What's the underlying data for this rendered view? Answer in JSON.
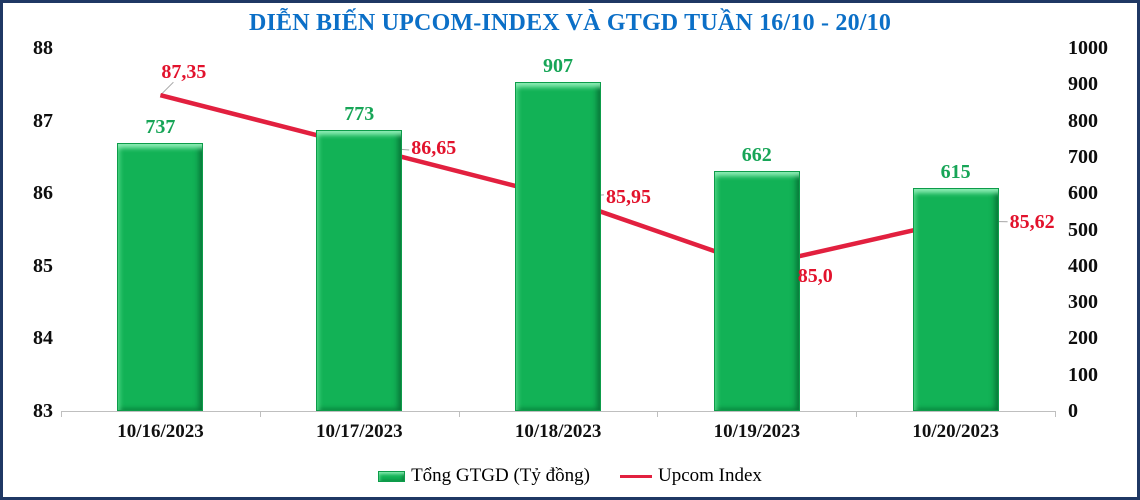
{
  "title": "DIỄN BIẾN UPCOM-INDEX VÀ GTGD TUẦN 16/10 - 20/10",
  "legend": {
    "bars_label": "Tổng GTGD (Tỷ đồng)",
    "line_label": "Upcom Index"
  },
  "colors": {
    "title": "#0B6FC7",
    "frame_border": "#1F3864",
    "bar_fill": "#12B256",
    "bar_value_label": "#17A557",
    "line": "#E2203F",
    "line_value_label": "#E2122C",
    "leader_line": "#A6A6A6",
    "axis_line": "#BFBFBF",
    "axis_text": "#0D0D0D"
  },
  "chart_data": {
    "type": "bar+line combo",
    "title": "DIỄN BIẾN UPCOM-INDEX VÀ GTGD TUẦN 16/10 - 20/10",
    "categories": [
      "10/16/2023",
      "10/17/2023",
      "10/18/2023",
      "10/19/2023",
      "10/20/2023"
    ],
    "series": [
      {
        "name": "Tổng GTGD (Tỷ đồng)",
        "type": "bar",
        "axis": "right",
        "values": [
          737,
          773,
          907,
          662,
          615
        ],
        "value_labels": [
          "737",
          "773",
          "907",
          "662",
          "615"
        ]
      },
      {
        "name": "Upcom Index",
        "type": "line",
        "axis": "left",
        "values": [
          87.35,
          86.65,
          85.95,
          85.0,
          85.62
        ],
        "value_labels": [
          "87,35",
          "86,65",
          "85,95",
          "85,0",
          "85,62"
        ]
      }
    ],
    "left_axis": {
      "min": 83,
      "max": 88,
      "step": 1,
      "ticks": [
        "88",
        "87",
        "86",
        "85",
        "84",
        "83"
      ]
    },
    "right_axis": {
      "min": 0,
      "max": 1000,
      "step": 100,
      "ticks": [
        "1000",
        "900",
        "800",
        "700",
        "600",
        "500",
        "400",
        "300",
        "200",
        "100",
        "0"
      ]
    },
    "grid": false,
    "legend_position": "bottom"
  }
}
